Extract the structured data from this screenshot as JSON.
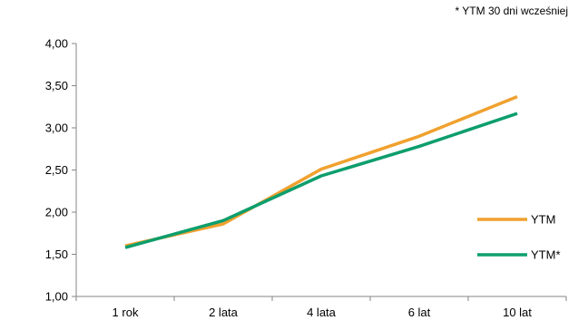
{
  "note": "* YTM 30 dni wcześniej",
  "chart_data": {
    "type": "line",
    "categories": [
      "1 rok",
      "2 lata",
      "4 lata",
      "6 lat",
      "10 lat"
    ],
    "series": [
      {
        "name": "YTM",
        "values": [
          1.6,
          1.86,
          2.51,
          2.9,
          3.37
        ],
        "color": "#F0A12F"
      },
      {
        "name": "YTM*",
        "values": [
          1.58,
          1.9,
          2.43,
          2.78,
          3.17
        ],
        "color": "#0D9E6C"
      }
    ],
    "yticks": [
      "1,00",
      "1,50",
      "2,00",
      "2,50",
      "3,00",
      "3,50",
      "4,00"
    ],
    "ylim": [
      1.0,
      4.0
    ],
    "grid": false,
    "legend": "right"
  }
}
